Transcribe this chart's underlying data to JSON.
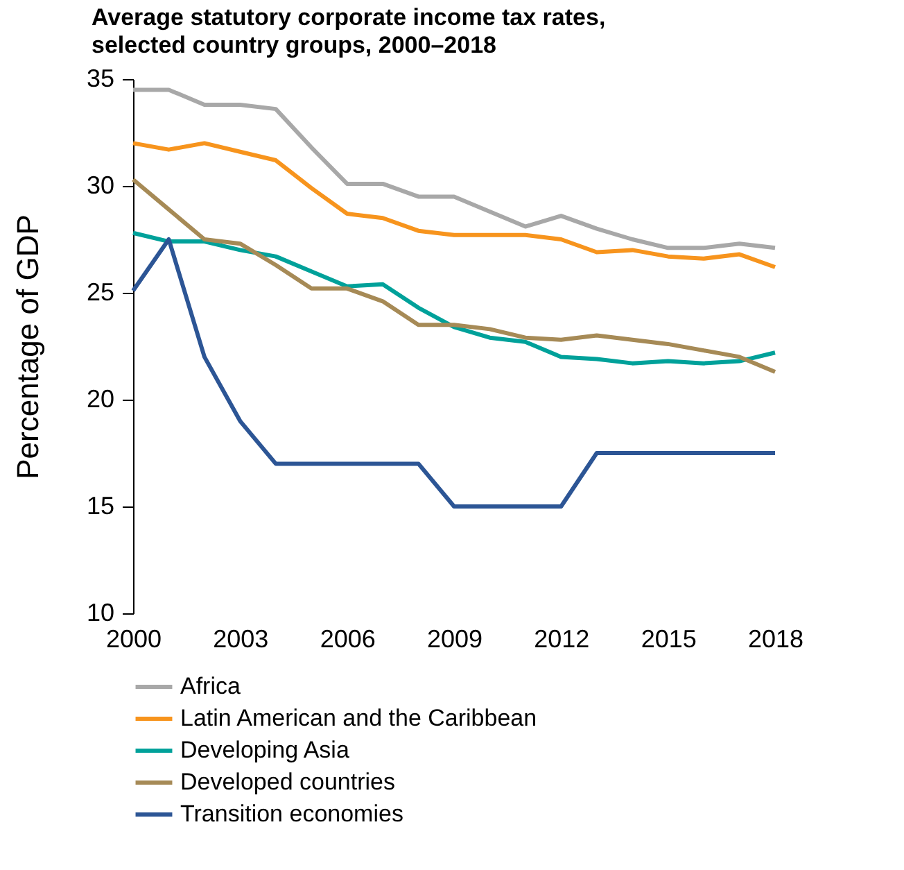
{
  "chart_data": {
    "type": "line",
    "title": "Average statutory corporate income tax rates, selected country groups, 2000–2018",
    "ylabel": "Percentage of GDP",
    "x": [
      2000,
      2001,
      2002,
      2003,
      2004,
      2005,
      2006,
      2007,
      2008,
      2009,
      2010,
      2011,
      2012,
      2013,
      2014,
      2015,
      2016,
      2017,
      2018
    ],
    "xlim": [
      2000,
      2018
    ],
    "xticks": [
      2000,
      2003,
      2006,
      2009,
      2012,
      2015,
      2018
    ],
    "ylim": [
      10,
      35
    ],
    "yticks": [
      10,
      15,
      20,
      25,
      30,
      35
    ],
    "grid": false,
    "legend": "bottom",
    "marker": "none",
    "line_style": "solid",
    "series": [
      {
        "name": "Africa",
        "color": "#a8a8a8",
        "values": [
          34.5,
          34.5,
          33.8,
          33.8,
          33.6,
          31.8,
          30.1,
          30.1,
          29.5,
          29.5,
          28.8,
          28.1,
          28.6,
          28.0,
          27.5,
          27.1,
          27.1,
          27.3,
          27.1
        ]
      },
      {
        "name": "Latin American and the Caribbean",
        "color": "#f7941d",
        "values": [
          32.0,
          31.7,
          32.0,
          31.6,
          31.2,
          29.9,
          28.7,
          28.5,
          27.9,
          27.7,
          27.7,
          27.7,
          27.5,
          26.9,
          27.0,
          26.7,
          26.6,
          26.8,
          26.2
        ]
      },
      {
        "name": "Developing Asia",
        "color": "#00a19a",
        "values": [
          27.8,
          27.4,
          27.4,
          27.0,
          26.7,
          26.0,
          25.3,
          25.4,
          24.3,
          23.4,
          22.9,
          22.7,
          22.0,
          21.9,
          21.7,
          21.8,
          21.7,
          21.8,
          22.2
        ]
      },
      {
        "name": "Developed countries",
        "color": "#a68a56",
        "values": [
          30.3,
          28.9,
          27.5,
          27.3,
          26.3,
          25.2,
          25.2,
          24.6,
          23.5,
          23.5,
          23.3,
          22.9,
          22.8,
          23.0,
          22.8,
          22.6,
          22.3,
          22.0,
          21.3
        ]
      },
      {
        "name": "Transition economies",
        "color": "#2c5595",
        "values": [
          25.1,
          27.5,
          22.0,
          19.0,
          17.0,
          17.0,
          17.0,
          17.0,
          17.0,
          15.0,
          15.0,
          15.0,
          15.0,
          17.5,
          17.5,
          17.5,
          17.5,
          17.5,
          17.5
        ]
      }
    ]
  }
}
